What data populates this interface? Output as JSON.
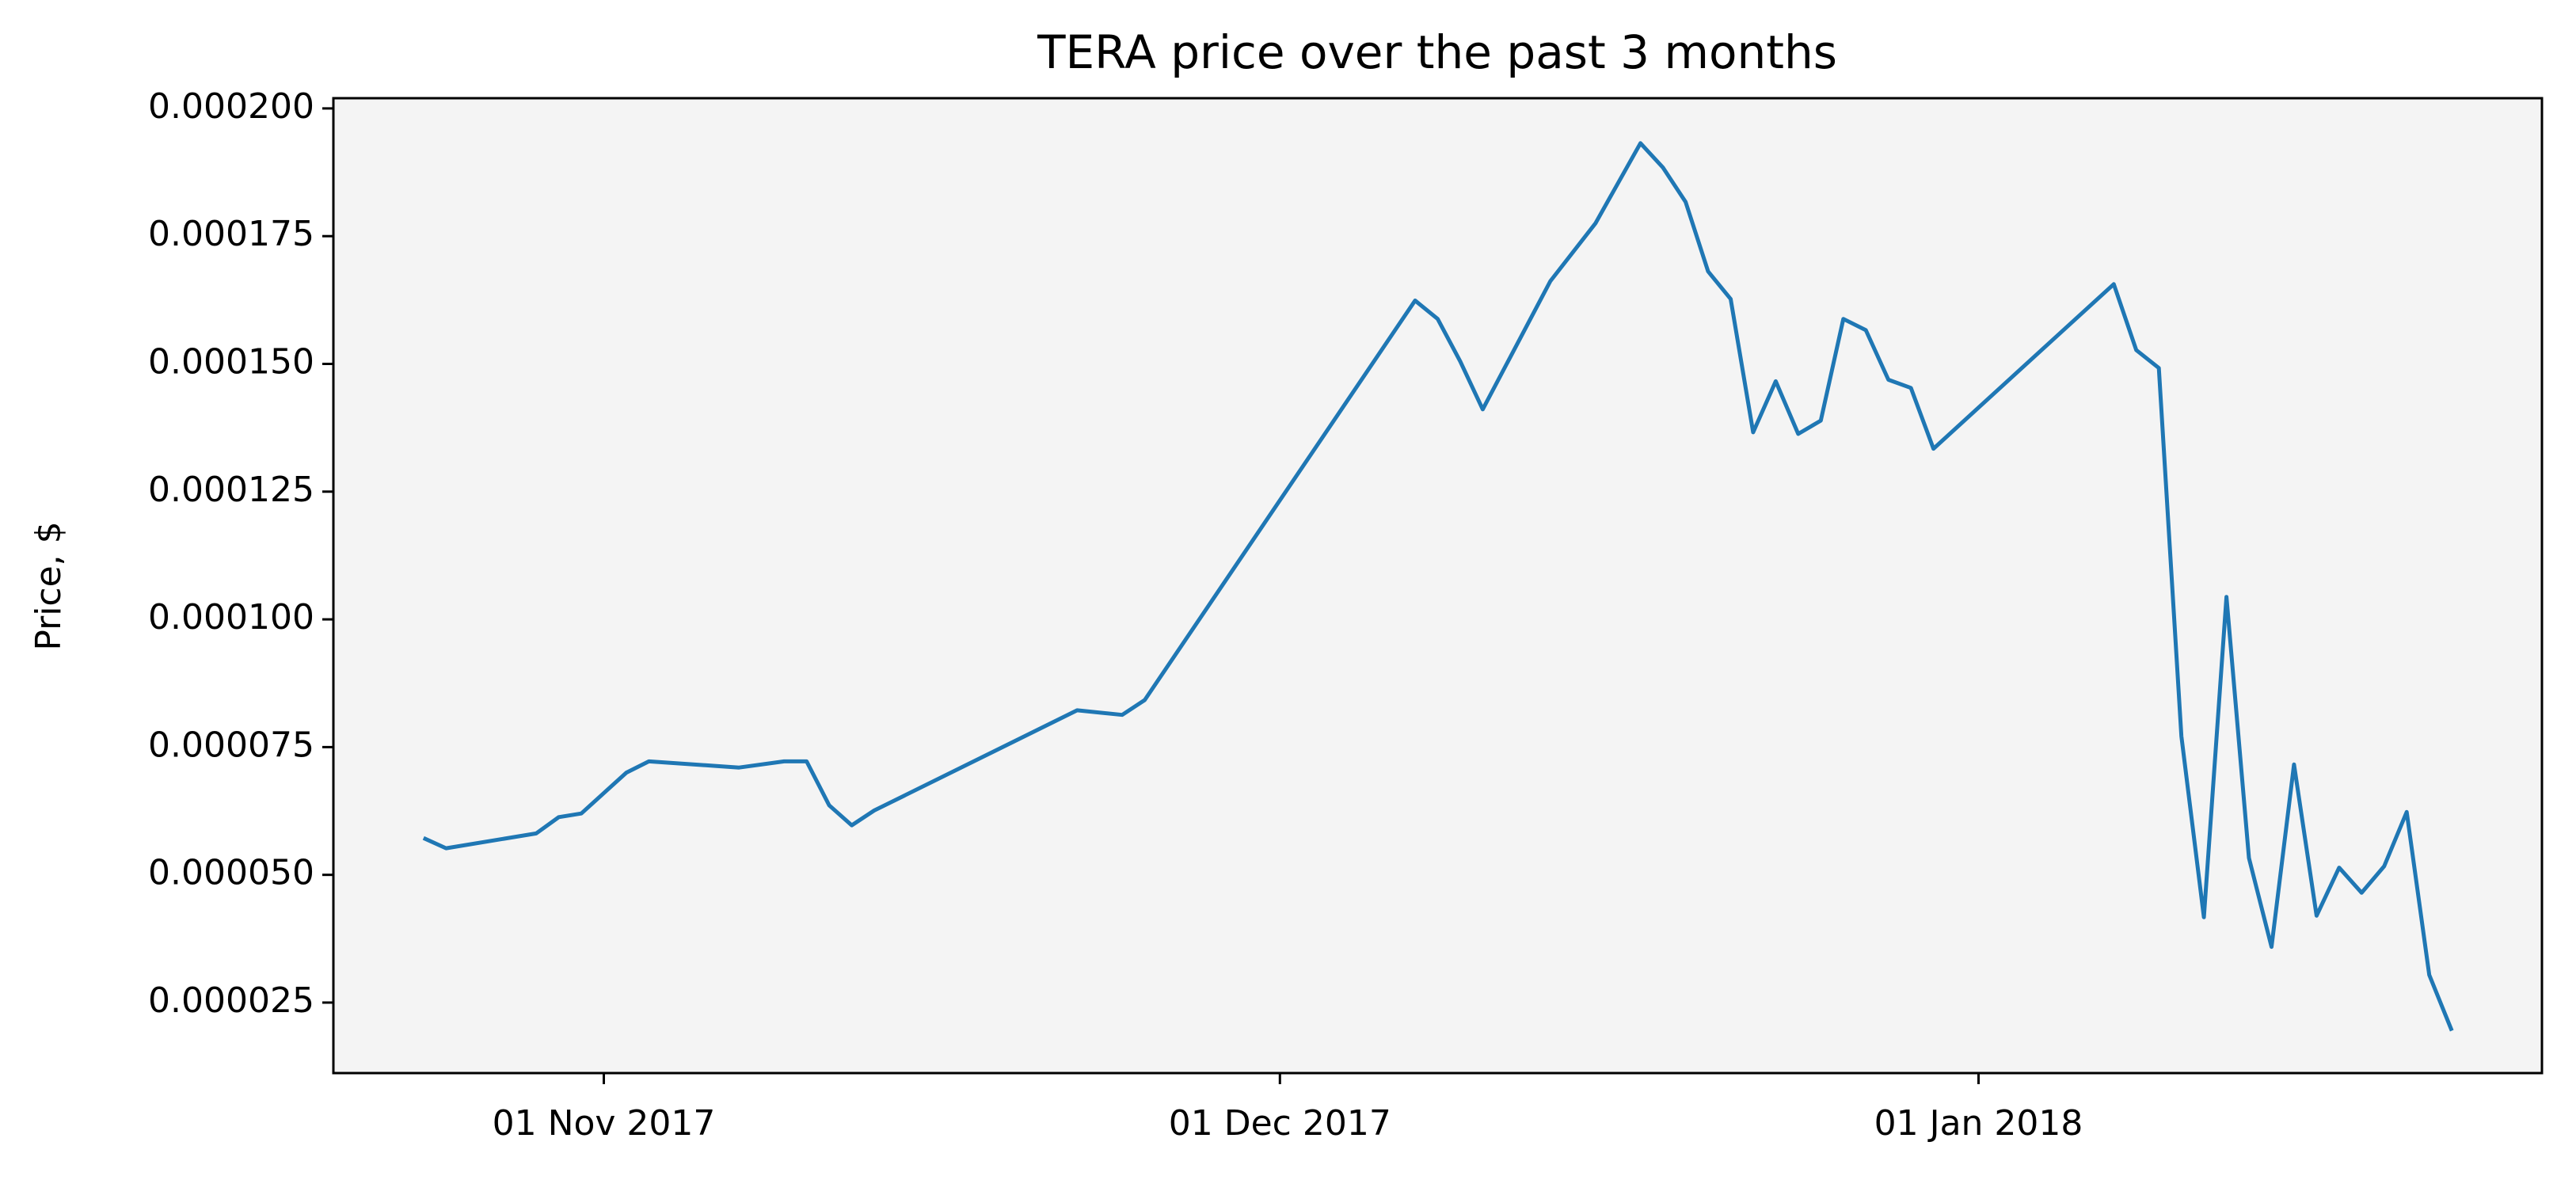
{
  "chart_data": {
    "type": "line",
    "title": "TERA price over the past 3 months",
    "ylabel": "Price, $",
    "color": "#1f77b4",
    "x": [
      "2017-10-24",
      "2017-10-25",
      "2017-10-29",
      "2017-10-30",
      "2017-10-31",
      "2017-11-02",
      "2017-11-03",
      "2017-11-06",
      "2017-11-07",
      "2017-11-09",
      "2017-11-10",
      "2017-11-11",
      "2017-11-12",
      "2017-11-13",
      "2017-11-22",
      "2017-11-24",
      "2017-11-25",
      "2017-12-07",
      "2017-12-08",
      "2017-12-09",
      "2017-12-10",
      "2017-12-13",
      "2017-12-15",
      "2017-12-17",
      "2017-12-18",
      "2017-12-19",
      "2017-12-20",
      "2017-12-21",
      "2017-12-22",
      "2017-12-23",
      "2017-12-24",
      "2017-12-25",
      "2017-12-26",
      "2017-12-27",
      "2017-12-28",
      "2017-12-29",
      "2017-12-30",
      "2018-01-07",
      "2018-01-08",
      "2018-01-09",
      "2018-01-10",
      "2018-01-11",
      "2018-01-12",
      "2018-01-13",
      "2018-01-14",
      "2018-01-15",
      "2018-01-16",
      "2018-01-17",
      "2018-01-18",
      "2018-01-19",
      "2018-01-20",
      "2018-01-21",
      "2018-01-22"
    ],
    "values": [
      5.72e-05,
      5.52e-05,
      5.81e-05,
      6.13e-05,
      6.2e-05,
      7e-05,
      7.22e-05,
      7.13e-05,
      7.1e-05,
      7.22e-05,
      7.22e-05,
      6.36e-05,
      5.97e-05,
      6.26e-05,
      8.22e-05,
      8.13e-05,
      8.42e-05,
      0.0001624,
      0.0001588,
      0.0001505,
      0.0001411,
      0.0001662,
      0.0001775,
      0.0001932,
      0.0001884,
      0.0001817,
      0.0001681,
      0.0001627,
      0.0001366,
      0.0001466,
      0.0001363,
      0.0001389,
      0.0001588,
      0.0001566,
      0.0001469,
      0.0001453,
      0.0001334,
      0.0001656,
      0.0001527,
      0.0001492,
      7.71e-05,
      4.17e-05,
      0.0001044,
      5.33e-05,
      3.59e-05,
      7.16e-05,
      4.2e-05,
      5.14e-05,
      4.65e-05,
      5.17e-05,
      6.23e-05,
      3.04e-05,
      1.95e-05
    ],
    "xlim": [
      "2017-10-20",
      "2018-01-26"
    ],
    "xticks": [
      {
        "value": "2017-11-01",
        "label": "01 Nov 2017"
      },
      {
        "value": "2017-12-01",
        "label": "01 Dec 2017"
      },
      {
        "value": "2018-01-01",
        "label": "01 Jan 2018"
      }
    ],
    "ylim": [
      1.12e-05,
      0.000202
    ],
    "yticks": [
      {
        "value": 2.5e-05,
        "label": "0.000025"
      },
      {
        "value": 5e-05,
        "label": "0.000050"
      },
      {
        "value": 7.5e-05,
        "label": "0.000075"
      },
      {
        "value": 0.0001,
        "label": "0.000100"
      },
      {
        "value": 0.000125,
        "label": "0.000125"
      },
      {
        "value": 0.00015,
        "label": "0.000150"
      },
      {
        "value": 0.000175,
        "label": "0.000175"
      },
      {
        "value": 0.0002,
        "label": "0.000200"
      }
    ]
  }
}
